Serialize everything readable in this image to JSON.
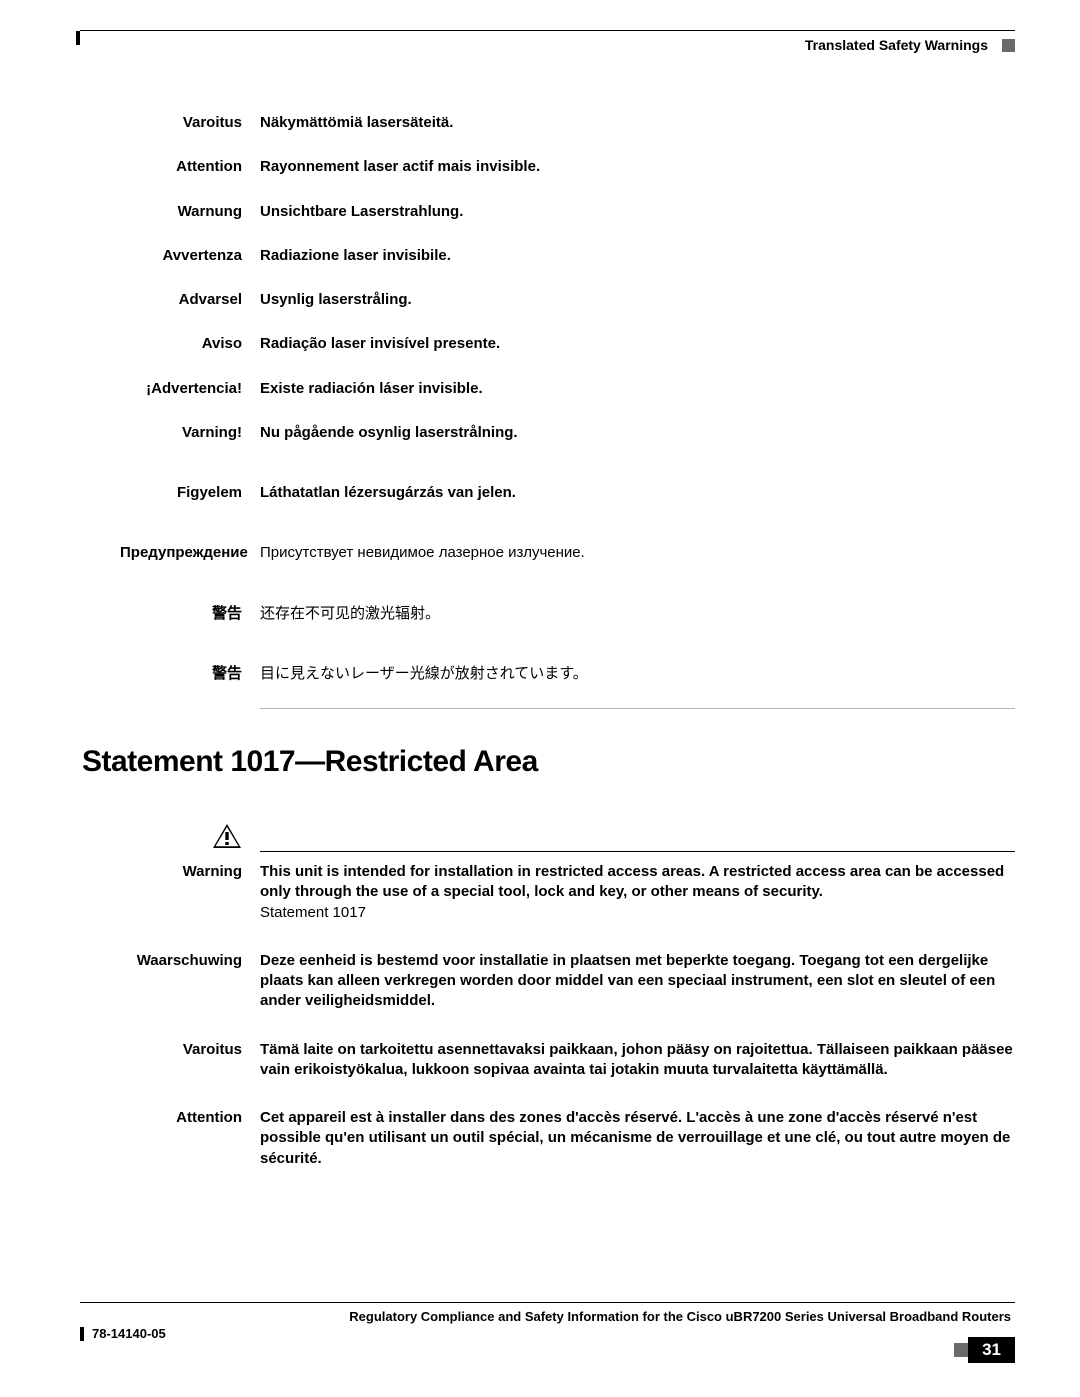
{
  "header": {
    "section_title": "Translated Safety Warnings"
  },
  "laser_warnings": [
    {
      "label": "Varoitus",
      "text": "Näkymättömiä lasersäteitä.",
      "bold_text": true
    },
    {
      "label": "Attention",
      "text": "Rayonnement laser actif mais invisible.",
      "bold_text": true
    },
    {
      "label": "Warnung",
      "text": "Unsichtbare Laserstrahlung.",
      "bold_text": true
    },
    {
      "label": "Avvertenza",
      "text": "Radiazione laser invisibile.",
      "bold_text": true
    },
    {
      "label": "Advarsel",
      "text": "Usynlig laserstråling.",
      "bold_text": true
    },
    {
      "label": "Aviso",
      "text": "Radiação laser invisível presente.",
      "bold_text": true
    },
    {
      "label": "¡Advertencia!",
      "text": "Existe radiación láser invisible.",
      "bold_text": true
    },
    {
      "label": "Varning!",
      "text": "Nu pågående osynlig laserstrålning.",
      "bold_text": true,
      "extra_gap": true
    },
    {
      "label": "Figyelem",
      "text": "Láthatatlan lézersugárzás van jelen.",
      "bold_text": true,
      "extra_gap": true
    },
    {
      "label": "Предупреждение",
      "text": "Присутствует невидимое лазерное излучение.",
      "bold_text": false,
      "extra_gap": true
    },
    {
      "label": "警告",
      "text": "还存在不可见的激光辐射。",
      "bold_text": false,
      "extra_gap": true
    },
    {
      "label": "警告",
      "text": "目に見えないレーザー光線が放射されています。",
      "bold_text": false
    }
  ],
  "statement": {
    "heading": "Statement 1017—Restricted Area",
    "icon_name": "warning-triangle-icon",
    "rows": [
      {
        "label": "Warning",
        "text": "This unit is intended for installation in restricted access areas. A restricted access area can be accessed only through the use of a special tool, lock and key, or other means of security.",
        "note": "Statement 1017"
      },
      {
        "label": "Waarschuwing",
        "text": "Deze eenheid is bestemd voor installatie in plaatsen met beperkte toegang. Toegang tot een dergelijke plaats kan alleen verkregen worden door middel van een speciaal instrument, een slot en sleutel of een ander veiligheidsmiddel."
      },
      {
        "label": "Varoitus",
        "text": "Tämä laite on tarkoitettu asennettavaksi paikkaan, johon pääsy on rajoitettua. Tällaiseen paikkaan pääsee vain erikoistyökalua, lukkoon sopivaa avainta tai jotakin muuta turvalaitetta käyttämällä."
      },
      {
        "label": "Attention",
        "text": "Cet appareil est à installer dans des zones d'accès réservé. L'accès à une zone d'accès réservé n'est possible qu'en utilisant un outil spécial, un mécanisme de verrouillage et une clé, ou tout autre moyen de sécurité."
      }
    ]
  },
  "footer": {
    "doc_title": "Regulatory Compliance and Safety Information for the Cisco uBR7200 Series Universal Broadband Routers",
    "doc_id": "78-14140-05",
    "page_number": "31"
  },
  "colors": {
    "text": "#000000",
    "muted_square": "#6a6a6a",
    "divider": "#b5b5b5",
    "page_bg": "#ffffff"
  }
}
